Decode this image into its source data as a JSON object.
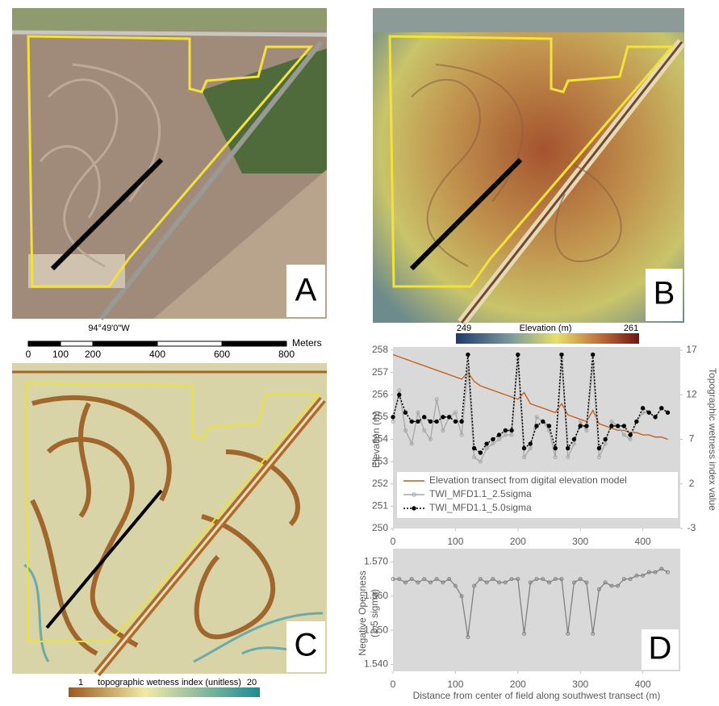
{
  "panels": {
    "a": {
      "label": "A",
      "coordinate": "94°49'0\"W"
    },
    "b": {
      "label": "B",
      "colorbar": {
        "min": 249,
        "max": 261,
        "title": "Elevation (m)"
      }
    },
    "c": {
      "label": "C",
      "colorbar": {
        "min": 1,
        "max": 20,
        "title": "topographic wetness index (unitless)"
      }
    },
    "d": {
      "label": "D"
    }
  },
  "scale_bar": {
    "ticks": [
      0,
      100,
      200,
      400,
      600,
      800
    ],
    "unit": "Meters"
  },
  "chart_data": [
    {
      "type": "line",
      "ylabel": "Elevation (m)",
      "y2label": "Topographic wetness index value",
      "x": [
        0,
        10,
        20,
        30,
        40,
        50,
        60,
        70,
        80,
        90,
        100,
        110,
        120,
        130,
        140,
        150,
        160,
        170,
        180,
        190,
        200,
        210,
        220,
        230,
        240,
        250,
        260,
        270,
        280,
        290,
        300,
        310,
        320,
        330,
        340,
        350,
        360,
        370,
        380,
        390,
        400,
        410,
        420,
        430,
        440
      ],
      "xlim": [
        0,
        460
      ],
      "xticks": [
        0,
        100,
        200,
        300,
        400
      ],
      "ylim": [
        250,
        258
      ],
      "yticks": [
        250,
        251,
        252,
        253,
        254,
        255,
        256,
        257,
        258
      ],
      "y2lim": [
        -3,
        17
      ],
      "y2ticks": [
        -3,
        2,
        7,
        12,
        17
      ],
      "background": "#d9d9d9",
      "legend": "lower-center",
      "series": [
        {
          "name": "Elevation transect from digital elevation model",
          "color": "#c55a11",
          "marker": "none",
          "values": [
            257.8,
            257.7,
            257.6,
            257.5,
            257.4,
            257.3,
            257.2,
            257.1,
            257.0,
            256.9,
            256.8,
            256.7,
            257.0,
            256.6,
            256.4,
            256.3,
            256.2,
            256.1,
            256.0,
            255.9,
            255.8,
            256.1,
            255.6,
            255.5,
            255.4,
            255.3,
            255.2,
            255.6,
            255.1,
            255.0,
            254.9,
            254.8,
            255.3,
            254.7,
            254.6,
            254.5,
            254.4,
            254.4,
            254.3,
            254.3,
            254.2,
            254.2,
            254.1,
            254.1,
            254.0
          ]
        },
        {
          "name": "TWI_MFD1.1_2.5sigma",
          "color": "#a6a6a6",
          "marker": "open-circle",
          "axis": "y2",
          "values": [
            9,
            12.5,
            8,
            6.5,
            10,
            8,
            7,
            11.5,
            8,
            9.5,
            10,
            7.5,
            15,
            5,
            4.5,
            6,
            6.5,
            7,
            7.5,
            7.5,
            16,
            5,
            6,
            9.5,
            9,
            8,
            5,
            16,
            5,
            6.5,
            9,
            8,
            15.5,
            5,
            6.5,
            9,
            8.5,
            7.5,
            7,
            9,
            10,
            10,
            9.5,
            10.5,
            10
          ]
        },
        {
          "name": "TWI_MFD1.1_5.0sigma",
          "color": "#000000",
          "marker": "dot",
          "axis": "y2",
          "values": [
            9.5,
            12,
            10,
            9,
            9,
            9.5,
            9,
            9,
            9.5,
            9.5,
            9,
            9,
            16.5,
            6,
            5.5,
            6.5,
            7,
            7.5,
            8,
            8,
            16.5,
            6,
            6.5,
            8.5,
            9,
            8.5,
            6,
            16.5,
            6,
            7,
            8.5,
            8.5,
            16.5,
            6,
            7,
            8.5,
            8.5,
            8.5,
            7.5,
            9,
            10.5,
            10,
            9.5,
            10.5,
            10
          ]
        }
      ]
    },
    {
      "type": "line",
      "ylabel": [
        "Negative Openness",
        "(2.5 sigma)"
      ],
      "xlabel": "Distance from center of field along southwest transect (m)",
      "x": [
        0,
        10,
        20,
        30,
        40,
        50,
        60,
        70,
        80,
        90,
        100,
        110,
        120,
        130,
        140,
        150,
        160,
        170,
        180,
        190,
        200,
        210,
        220,
        230,
        240,
        250,
        260,
        270,
        280,
        290,
        300,
        310,
        320,
        330,
        340,
        350,
        360,
        370,
        380,
        390,
        400,
        410,
        420,
        430,
        440
      ],
      "xlim": [
        0,
        460
      ],
      "xticks": [
        0,
        100,
        200,
        300,
        400
      ],
      "ylim": [
        1.538,
        1.572
      ],
      "yticks": [
        {
          "value": 1.54,
          "label": "1.540"
        },
        {
          "value": 1.55,
          "label": "1.550"
        },
        {
          "value": 1.56,
          "label": "1.560"
        },
        {
          "value": 1.57,
          "label": "1.570"
        }
      ],
      "background": "#d9d9d9",
      "series": [
        {
          "color": "#808080",
          "marker": "open-circle",
          "values": [
            1.565,
            1.565,
            1.564,
            1.565,
            1.564,
            1.565,
            1.564,
            1.565,
            1.564,
            1.565,
            1.563,
            1.56,
            1.548,
            1.563,
            1.565,
            1.564,
            1.565,
            1.564,
            1.564,
            1.565,
            1.565,
            1.549,
            1.564,
            1.565,
            1.565,
            1.564,
            1.565,
            1.565,
            1.549,
            1.564,
            1.565,
            1.564,
            1.549,
            1.562,
            1.564,
            1.563,
            1.563,
            1.565,
            1.565,
            1.566,
            1.566,
            1.567,
            1.567,
            1.568,
            1.567
          ]
        }
      ]
    }
  ]
}
